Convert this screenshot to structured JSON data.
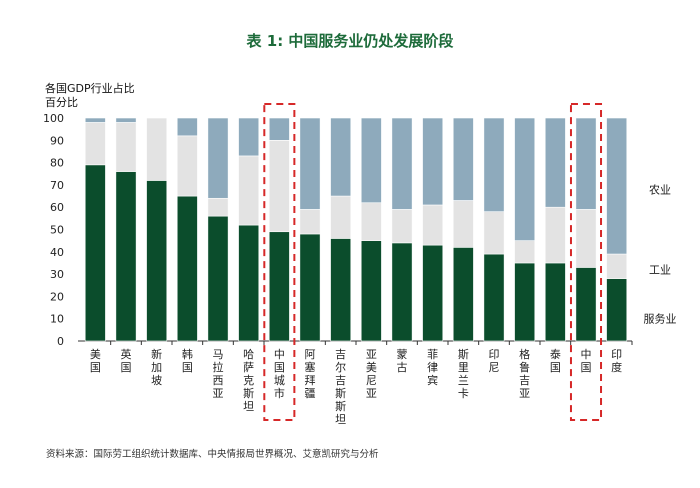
{
  "chart_data": {
    "type": "bar",
    "stacked": true,
    "title": "表 1: 中国服务业仍处发展阶段",
    "ylabel": "各国GDP行业占比\n百分比",
    "ylim": [
      0,
      100
    ],
    "yticks": [
      0,
      10,
      20,
      30,
      40,
      50,
      60,
      70,
      80,
      90,
      100
    ],
    "categories": [
      "美国",
      "英国",
      "新加坡",
      "韩国",
      "马拉西亚",
      "哈萨克斯坦",
      "中国城市",
      "阿塞拜疆",
      "吉尔吉斯斯坦",
      "亚美尼亚",
      "蒙古",
      "菲律宾",
      "斯里兰卡",
      "印尼",
      "格鲁吉亚",
      "泰国",
      "中国",
      "印度"
    ],
    "highlighted": [
      "中国城市",
      "中国"
    ],
    "series": [
      {
        "name": "服务业",
        "color": "#0b4d2c",
        "values": [
          79,
          76,
          72,
          65,
          56,
          52,
          49,
          48,
          46,
          45,
          44,
          43,
          42,
          39,
          35,
          35,
          33,
          28
        ]
      },
      {
        "name": "工业",
        "color": "#e3e3e3",
        "values": [
          19,
          22,
          28,
          27,
          8,
          31,
          41,
          11,
          19,
          17,
          15,
          18,
          21,
          19,
          10,
          25,
          26,
          11
        ]
      },
      {
        "name": "农业",
        "color": "#8eaabc",
        "values": [
          2,
          2,
          0,
          8,
          36,
          17,
          10,
          41,
          35,
          38,
          41,
          39,
          37,
          42,
          55,
          40,
          41,
          61
        ]
      }
    ],
    "legend": [
      "农业",
      "工业",
      "服务业"
    ]
  },
  "source": "资料来源：国际劳工组织统计数据库、中央情报局世界概况、艾意凯研究与分析"
}
